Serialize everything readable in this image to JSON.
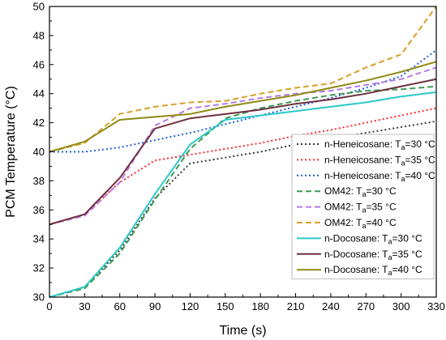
{
  "chart_data": {
    "type": "line",
    "xlabel": "Time (s)",
    "ylabel": "PCM Temperature (°C)",
    "xlim": [
      0,
      330
    ],
    "ylim": [
      30,
      50
    ],
    "xticks": [
      0,
      30,
      60,
      90,
      120,
      150,
      180,
      210,
      240,
      270,
      300,
      330
    ],
    "yticks": [
      30,
      32,
      34,
      36,
      38,
      40,
      42,
      44,
      46,
      48,
      50
    ],
    "grid": false,
    "legend_position": "bottom-right",
    "series": [
      {
        "name": "n-Heneicosane: T",
        "sub": "a",
        "suffix": "=30 °C",
        "color": "#3a3a3a",
        "dash": "dotted",
        "x": [
          0,
          30,
          60,
          90,
          120,
          150,
          180,
          210,
          240,
          270,
          300,
          330
        ],
        "y": [
          30.0,
          30.7,
          33.2,
          36.8,
          39.2,
          39.6,
          40.0,
          40.5,
          40.9,
          41.3,
          41.7,
          42.1
        ]
      },
      {
        "name": "n-Heneicosane: T",
        "sub": "a",
        "suffix": "=35 °C",
        "color": "#ff2b2b",
        "dash": "dotted",
        "x": [
          0,
          30,
          60,
          90,
          120,
          150,
          180,
          210,
          240,
          270,
          300,
          330
        ],
        "y": [
          35.0,
          35.7,
          37.9,
          39.4,
          39.8,
          40.2,
          40.6,
          41.1,
          41.5,
          42.0,
          42.5,
          43.0
        ]
      },
      {
        "name": "n-Heneicosane: T",
        "sub": "a",
        "suffix": "=40 °C",
        "color": "#1f5fd6",
        "dash": "dotted",
        "x": [
          0,
          30,
          60,
          90,
          120,
          150,
          180,
          210,
          240,
          270,
          300,
          330
        ],
        "y": [
          40.0,
          40.0,
          40.3,
          40.8,
          41.3,
          41.9,
          42.5,
          43.1,
          43.7,
          44.4,
          45.2,
          47.0
        ]
      },
      {
        "name": "OM42: T",
        "sub": "a",
        "suffix": "=30 °C",
        "color": "#3f9a52",
        "dash": "dashed",
        "x": [
          0,
          30,
          60,
          90,
          120,
          150,
          180,
          210,
          240,
          270,
          300,
          330
        ],
        "y": [
          30.0,
          30.6,
          33.0,
          36.7,
          40.2,
          42.3,
          43.0,
          43.5,
          43.9,
          44.2,
          44.3,
          44.5
        ]
      },
      {
        "name": "OM42: T",
        "sub": "a",
        "suffix": "=35 °C",
        "color": "#b77be3",
        "dash": "dashed",
        "x": [
          0,
          30,
          60,
          90,
          120,
          150,
          180,
          210,
          240,
          270,
          300,
          330
        ],
        "y": [
          35.0,
          35.6,
          37.9,
          41.8,
          43.0,
          43.3,
          43.7,
          44.0,
          44.2,
          44.6,
          45.0,
          45.8
        ]
      },
      {
        "name": "OM42: T",
        "sub": "a",
        "suffix": "=40 °C",
        "color": "#d8a02a",
        "dash": "dashed",
        "x": [
          0,
          30,
          60,
          90,
          120,
          150,
          180,
          210,
          240,
          270,
          300,
          330
        ],
        "y": [
          40.0,
          40.6,
          42.6,
          43.1,
          43.4,
          43.5,
          44.0,
          44.4,
          44.7,
          45.8,
          46.7,
          50.0
        ]
      },
      {
        "name": "n-Docosane: T",
        "sub": "a",
        "suffix": "=30 °C",
        "color": "#2cc8c8",
        "dash": "solid",
        "x": [
          0,
          30,
          60,
          90,
          120,
          150,
          180,
          210,
          240,
          270,
          300,
          330
        ],
        "y": [
          30.0,
          30.7,
          33.4,
          37.1,
          40.5,
          42.2,
          42.5,
          42.8,
          43.1,
          43.4,
          43.8,
          44.1
        ]
      },
      {
        "name": "n-Docosane: T",
        "sub": "a",
        "suffix": "=35 °C",
        "color": "#6e2f3e",
        "dash": "solid",
        "x": [
          0,
          30,
          60,
          90,
          120,
          150,
          180,
          210,
          240,
          270,
          300,
          330
        ],
        "y": [
          35.0,
          35.7,
          38.2,
          41.6,
          42.3,
          42.6,
          42.9,
          43.3,
          43.6,
          44.0,
          44.5,
          45.0
        ]
      },
      {
        "name": "n-Docosane: T",
        "sub": "a",
        "suffix": "=40 °C",
        "color": "#8f8a14",
        "dash": "solid",
        "x": [
          0,
          30,
          60,
          90,
          120,
          150,
          180,
          210,
          240,
          270,
          300,
          330
        ],
        "y": [
          40.0,
          40.7,
          42.2,
          42.4,
          42.6,
          43.1,
          43.5,
          43.9,
          44.4,
          44.9,
          45.5,
          46.2
        ]
      }
    ]
  }
}
